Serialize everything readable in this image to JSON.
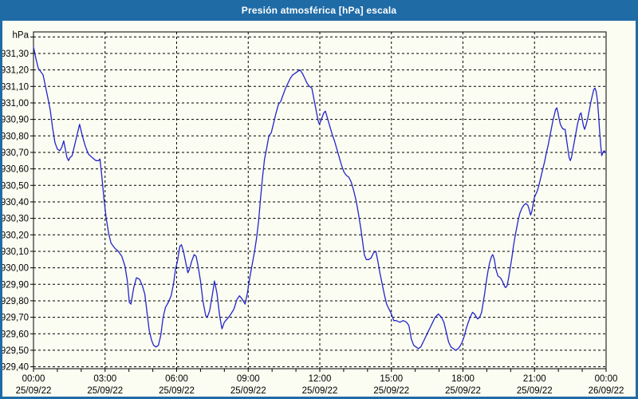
{
  "colors": {
    "frame_blue": "#1f6ba6",
    "plot_background": "#fbfdf2",
    "line_blue": "#2424cc",
    "grid_black": "#000000",
    "title_text": "#ffffff",
    "label_text": "#000000"
  },
  "chart_data": {
    "type": "line",
    "title": "Presión atmosférica [hPa] escala",
    "ylabel": "hPa",
    "ylim": [
      929.4,
      931.4
    ],
    "y_gridline_step": 0.1,
    "xlim_minutes": [
      0,
      1440
    ],
    "grid": true,
    "legend": false,
    "x_minor_tick_every_hours": 1,
    "y_ticks": [
      {
        "v": 931.3,
        "label": "931,30"
      },
      {
        "v": 931.2,
        "label": "931,20"
      },
      {
        "v": 931.1,
        "label": "931,10"
      },
      {
        "v": 931.0,
        "label": "931,00"
      },
      {
        "v": 930.9,
        "label": "930,90"
      },
      {
        "v": 930.8,
        "label": "930,80"
      },
      {
        "v": 930.7,
        "label": "930,70"
      },
      {
        "v": 930.6,
        "label": "930,60"
      },
      {
        "v": 930.5,
        "label": "930,50"
      },
      {
        "v": 930.4,
        "label": "930,40"
      },
      {
        "v": 930.3,
        "label": "930,30"
      },
      {
        "v": 930.2,
        "label": "930,20"
      },
      {
        "v": 930.1,
        "label": "930,10"
      },
      {
        "v": 930.0,
        "label": "930,00"
      },
      {
        "v": 929.9,
        "label": "929,90"
      },
      {
        "v": 929.8,
        "label": "929,80"
      },
      {
        "v": 929.7,
        "label": "929,70"
      },
      {
        "v": 929.6,
        "label": "929,60"
      },
      {
        "v": 929.5,
        "label": "929,50"
      },
      {
        "v": 929.4,
        "label": "929,40"
      }
    ],
    "x_ticks": [
      {
        "hour": 0,
        "time": "00:00",
        "date": "25/09/22"
      },
      {
        "hour": 3,
        "time": "03:00",
        "date": "25/09/22"
      },
      {
        "hour": 6,
        "time": "06:00",
        "date": "25/09/22"
      },
      {
        "hour": 9,
        "time": "09:00",
        "date": "25/09/22"
      },
      {
        "hour": 12,
        "time": "12:00",
        "date": "25/09/22"
      },
      {
        "hour": 15,
        "time": "15:00",
        "date": "25/09/22"
      },
      {
        "hour": 18,
        "time": "18:00",
        "date": "25/09/22"
      },
      {
        "hour": 21,
        "time": "21:00",
        "date": "25/09/22"
      },
      {
        "hour": 24,
        "time": "00:00",
        "date": "26/09/22"
      }
    ],
    "series": [
      {
        "name": "Presión atmosférica [hPa]",
        "points": [
          [
            0,
            931.34
          ],
          [
            6,
            931.27
          ],
          [
            12,
            931.21
          ],
          [
            18,
            931.19
          ],
          [
            24,
            931.17
          ],
          [
            30,
            931.1
          ],
          [
            36,
            931.03
          ],
          [
            42,
            930.96
          ],
          [
            48,
            930.85
          ],
          [
            54,
            930.76
          ],
          [
            60,
            930.72
          ],
          [
            66,
            930.71
          ],
          [
            71,
            930.73
          ],
          [
            76,
            930.77
          ],
          [
            80,
            930.72
          ],
          [
            84,
            930.67
          ],
          [
            88,
            930.65
          ],
          [
            92,
            930.67
          ],
          [
            97,
            930.68
          ],
          [
            103,
            930.74
          ],
          [
            109,
            930.8
          ],
          [
            116,
            930.87
          ],
          [
            123,
            930.8
          ],
          [
            130,
            930.74
          ],
          [
            138,
            930.69
          ],
          [
            147,
            930.67
          ],
          [
            157,
            930.65
          ],
          [
            164,
            930.65
          ],
          [
            167,
            930.66
          ],
          [
            172,
            930.55
          ],
          [
            177,
            930.42
          ],
          [
            183,
            930.3
          ],
          [
            189,
            930.21
          ],
          [
            195,
            930.15
          ],
          [
            204,
            930.12
          ],
          [
            213,
            930.1
          ],
          [
            222,
            930.07
          ],
          [
            230,
            930.01
          ],
          [
            236,
            929.92
          ],
          [
            241,
            929.79
          ],
          [
            245,
            929.78
          ],
          [
            252,
            929.88
          ],
          [
            259,
            929.94
          ],
          [
            267,
            929.93
          ],
          [
            274,
            929.89
          ],
          [
            280,
            929.84
          ],
          [
            286,
            929.72
          ],
          [
            291,
            929.62
          ],
          [
            297,
            929.56
          ],
          [
            302,
            929.53
          ],
          [
            308,
            929.52
          ],
          [
            314,
            929.53
          ],
          [
            320,
            929.59
          ],
          [
            326,
            929.7
          ],
          [
            332,
            929.76
          ],
          [
            339,
            929.79
          ],
          [
            346,
            929.83
          ],
          [
            352,
            929.9
          ],
          [
            357,
            929.99
          ],
          [
            362,
            930.04
          ],
          [
            368,
            930.13
          ],
          [
            372,
            930.14
          ],
          [
            377,
            930.1
          ],
          [
            383,
            930.03
          ],
          [
            388,
            929.97
          ],
          [
            392,
            929.99
          ],
          [
            398,
            930.04
          ],
          [
            404,
            930.08
          ],
          [
            409,
            930.07
          ],
          [
            414,
            930.01
          ],
          [
            420,
            929.92
          ],
          [
            426,
            929.8
          ],
          [
            433,
            929.71
          ],
          [
            437,
            929.7
          ],
          [
            443,
            929.74
          ],
          [
            450,
            929.84
          ],
          [
            455,
            929.92
          ],
          [
            461,
            929.85
          ],
          [
            468,
            929.71
          ],
          [
            474,
            929.63
          ],
          [
            480,
            929.67
          ],
          [
            487,
            929.69
          ],
          [
            494,
            929.71
          ],
          [
            504,
            929.75
          ],
          [
            512,
            929.81
          ],
          [
            518,
            929.83
          ],
          [
            525,
            929.81
          ],
          [
            532,
            929.78
          ],
          [
            538,
            929.85
          ],
          [
            544,
            929.94
          ],
          [
            550,
            930.02
          ],
          [
            556,
            930.1
          ],
          [
            561,
            930.18
          ],
          [
            566,
            930.28
          ],
          [
            571,
            930.42
          ],
          [
            576,
            930.55
          ],
          [
            581,
            930.66
          ],
          [
            586,
            930.72
          ],
          [
            592,
            930.8
          ],
          [
            598,
            930.82
          ],
          [
            604,
            930.88
          ],
          [
            610,
            930.94
          ],
          [
            616,
            930.99
          ],
          [
            622,
            931.01
          ],
          [
            628,
            931.05
          ],
          [
            634,
            931.09
          ],
          [
            640,
            931.12
          ],
          [
            646,
            931.15
          ],
          [
            652,
            931.17
          ],
          [
            658,
            931.18
          ],
          [
            664,
            931.19
          ],
          [
            670,
            931.2
          ],
          [
            676,
            931.18
          ],
          [
            682,
            931.15
          ],
          [
            688,
            931.12
          ],
          [
            694,
            931.1
          ],
          [
            700,
            931.09
          ],
          [
            704,
            931.04
          ],
          [
            708,
            930.99
          ],
          [
            712,
            930.94
          ],
          [
            716,
            930.89
          ],
          [
            719,
            930.87
          ],
          [
            724,
            930.9
          ],
          [
            730,
            930.94
          ],
          [
            734,
            930.95
          ],
          [
            739,
            930.91
          ],
          [
            745,
            930.86
          ],
          [
            751,
            930.81
          ],
          [
            757,
            930.77
          ],
          [
            763,
            930.72
          ],
          [
            769,
            930.67
          ],
          [
            775,
            930.62
          ],
          [
            781,
            930.58
          ],
          [
            787,
            930.56
          ],
          [
            793,
            930.55
          ],
          [
            799,
            930.52
          ],
          [
            805,
            930.47
          ],
          [
            811,
            930.41
          ],
          [
            817,
            930.33
          ],
          [
            823,
            930.24
          ],
          [
            828,
            930.15
          ],
          [
            832,
            930.08
          ],
          [
            837,
            930.05
          ],
          [
            843,
            930.05
          ],
          [
            849,
            930.06
          ],
          [
            855,
            930.09
          ],
          [
            861,
            930.1
          ],
          [
            866,
            930.04
          ],
          [
            871,
            929.97
          ],
          [
            877,
            929.9
          ],
          [
            883,
            929.83
          ],
          [
            888,
            929.78
          ],
          [
            894,
            929.75
          ],
          [
            900,
            929.72
          ],
          [
            906,
            929.68
          ],
          [
            912,
            929.68
          ],
          [
            921,
            929.67
          ],
          [
            930,
            929.68
          ],
          [
            938,
            929.67
          ],
          [
            944,
            929.65
          ],
          [
            950,
            929.57
          ],
          [
            956,
            929.53
          ],
          [
            962,
            929.52
          ],
          [
            968,
            929.51
          ],
          [
            974,
            929.52
          ],
          [
            980,
            929.55
          ],
          [
            986,
            929.58
          ],
          [
            992,
            929.61
          ],
          [
            998,
            929.64
          ],
          [
            1004,
            929.67
          ],
          [
            1010,
            929.7
          ],
          [
            1018,
            929.72
          ],
          [
            1026,
            929.7
          ],
          [
            1032,
            929.67
          ],
          [
            1038,
            929.61
          ],
          [
            1044,
            929.55
          ],
          [
            1050,
            929.52
          ],
          [
            1056,
            929.51
          ],
          [
            1062,
            929.5
          ],
          [
            1068,
            929.51
          ],
          [
            1074,
            929.53
          ],
          [
            1078,
            929.55
          ],
          [
            1084,
            929.59
          ],
          [
            1088,
            929.63
          ],
          [
            1092,
            929.66
          ],
          [
            1098,
            929.7
          ],
          [
            1104,
            929.73
          ],
          [
            1109,
            929.72
          ],
          [
            1114,
            929.7
          ],
          [
            1117,
            929.69
          ],
          [
            1122,
            929.7
          ],
          [
            1127,
            929.73
          ],
          [
            1131,
            929.79
          ],
          [
            1135,
            929.85
          ],
          [
            1139,
            929.92
          ],
          [
            1143,
            929.98
          ],
          [
            1147,
            930.03
          ],
          [
            1152,
            930.07
          ],
          [
            1155,
            930.08
          ],
          [
            1159,
            930.05
          ],
          [
            1163,
            929.99
          ],
          [
            1168,
            929.95
          ],
          [
            1174,
            929.94
          ],
          [
            1179,
            929.92
          ],
          [
            1184,
            929.89
          ],
          [
            1187,
            929.88
          ],
          [
            1191,
            929.89
          ],
          [
            1195,
            929.94
          ],
          [
            1199,
            930.0
          ],
          [
            1203,
            930.06
          ],
          [
            1207,
            930.13
          ],
          [
            1211,
            930.19
          ],
          [
            1215,
            930.24
          ],
          [
            1219,
            930.29
          ],
          [
            1223,
            930.33
          ],
          [
            1228,
            930.36
          ],
          [
            1233,
            930.38
          ],
          [
            1238,
            930.39
          ],
          [
            1243,
            930.38
          ],
          [
            1247,
            930.35
          ],
          [
            1250,
            930.32
          ],
          [
            1253,
            930.34
          ],
          [
            1256,
            930.38
          ],
          [
            1259,
            930.42
          ],
          [
            1262,
            930.44
          ],
          [
            1266,
            930.46
          ],
          [
            1270,
            930.49
          ],
          [
            1274,
            930.53
          ],
          [
            1278,
            930.57
          ],
          [
            1282,
            930.61
          ],
          [
            1286,
            930.65
          ],
          [
            1290,
            930.7
          ],
          [
            1294,
            930.74
          ],
          [
            1298,
            930.79
          ],
          [
            1302,
            930.84
          ],
          [
            1306,
            930.89
          ],
          [
            1310,
            930.93
          ],
          [
            1313,
            930.96
          ],
          [
            1316,
            930.97
          ],
          [
            1319,
            930.94
          ],
          [
            1322,
            930.9
          ],
          [
            1325,
            930.87
          ],
          [
            1329,
            930.85
          ],
          [
            1333,
            930.84
          ],
          [
            1337,
            930.84
          ],
          [
            1341,
            930.77
          ],
          [
            1344,
            930.72
          ],
          [
            1347,
            930.67
          ],
          [
            1350,
            930.65
          ],
          [
            1353,
            930.67
          ],
          [
            1356,
            930.71
          ],
          [
            1359,
            930.75
          ],
          [
            1362,
            930.79
          ],
          [
            1365,
            930.83
          ],
          [
            1368,
            930.87
          ],
          [
            1371,
            930.9
          ],
          [
            1374,
            930.93
          ],
          [
            1377,
            930.94
          ],
          [
            1380,
            930.9
          ],
          [
            1383,
            930.86
          ],
          [
            1386,
            930.84
          ],
          [
            1390,
            930.87
          ],
          [
            1394,
            930.91
          ],
          [
            1398,
            930.96
          ],
          [
            1402,
            931.01
          ],
          [
            1406,
            931.05
          ],
          [
            1409,
            931.08
          ],
          [
            1412,
            931.09
          ],
          [
            1415,
            931.07
          ],
          [
            1418,
            931.02
          ],
          [
            1421,
            930.93
          ],
          [
            1424,
            930.82
          ],
          [
            1427,
            930.73
          ],
          [
            1429,
            930.68
          ],
          [
            1432,
            930.7
          ],
          [
            1435,
            930.71
          ],
          [
            1438,
            930.7
          ],
          [
            1440,
            930.7
          ]
        ]
      }
    ]
  }
}
